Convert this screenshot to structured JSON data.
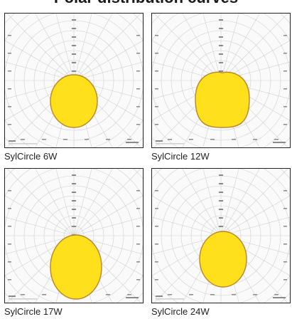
{
  "heading": {
    "text": "Polar distribution curves"
  },
  "panels": [
    {
      "caption": "SylCircle 6W"
    },
    {
      "caption": "SylCircle 12W"
    },
    {
      "caption": "SylCircle 17W"
    },
    {
      "caption": "SylCircle 24W"
    }
  ],
  "colors": {
    "grid": "#cfcfcf",
    "grid_dark": "#8a8a8a",
    "curve_fill": "#ffe01a",
    "curve_stroke": "#b8862a",
    "frame": "#222222",
    "axis_label": "#555555"
  }
}
